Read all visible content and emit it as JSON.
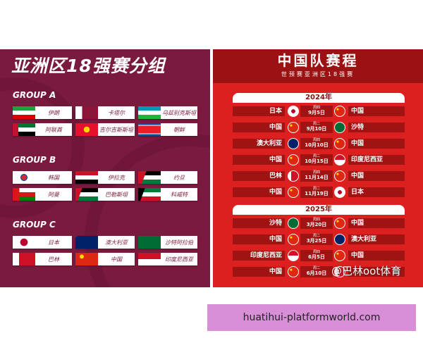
{
  "left": {
    "title": "亚洲区18强赛分组",
    "groups": [
      {
        "label": "GROUP A",
        "teams": [
          {
            "name": "伊朗",
            "flag": "ir"
          },
          {
            "name": "卡塔尔",
            "flag": "qa"
          },
          {
            "name": "乌兹别克斯坦",
            "flag": "uz"
          },
          {
            "name": "阿联酋",
            "flag": "ae"
          },
          {
            "name": "吉尔吉斯斯坦",
            "flag": "kg"
          },
          {
            "name": "朝鲜",
            "flag": "kp"
          }
        ]
      },
      {
        "label": "GROUP B",
        "teams": [
          {
            "name": "韩国",
            "flag": "kr"
          },
          {
            "name": "伊拉克",
            "flag": "iq"
          },
          {
            "name": "约旦",
            "flag": "jo"
          },
          {
            "name": "阿曼",
            "flag": "om"
          },
          {
            "name": "巴勒斯坦",
            "flag": "ps"
          },
          {
            "name": "科威特",
            "flag": "kw"
          }
        ]
      },
      {
        "label": "GROUP C",
        "teams": [
          {
            "name": "日本",
            "flag": "jp"
          },
          {
            "name": "澳大利亚",
            "flag": "au"
          },
          {
            "name": "沙特阿拉伯",
            "flag": "sa"
          },
          {
            "name": "巴林",
            "flag": "bh"
          },
          {
            "name": "中国",
            "flag": "cn"
          },
          {
            "name": "印度尼西亚",
            "flag": "id"
          }
        ]
      }
    ]
  },
  "right": {
    "title": "中国队赛程",
    "subtitle": "世预赛亚洲区18强赛",
    "years": [
      {
        "label": "2024年",
        "matches": [
          {
            "home": "日本",
            "hf": "jp",
            "weekday": "周四",
            "date": "9月5日",
            "away": "中国",
            "af": "cn"
          },
          {
            "home": "中国",
            "hf": "cn",
            "weekday": "周二",
            "date": "9月10日",
            "away": "沙特",
            "af": "sa"
          },
          {
            "home": "澳大利亚",
            "hf": "au",
            "weekday": "周四",
            "date": "10月10日",
            "away": "中国",
            "af": "cn"
          },
          {
            "home": "中国",
            "hf": "cn",
            "weekday": "周二",
            "date": "10月15日",
            "away": "印度尼西亚",
            "af": "id"
          },
          {
            "home": "巴林",
            "hf": "bh",
            "weekday": "周四",
            "date": "11月14日",
            "away": "中国",
            "af": "cn"
          },
          {
            "home": "中国",
            "hf": "cn",
            "weekday": "周二",
            "date": "11月19日",
            "away": "日本",
            "af": "jp"
          }
        ]
      },
      {
        "label": "2025年",
        "matches": [
          {
            "home": "沙特",
            "hf": "sa",
            "weekday": "周四",
            "date": "3月20日",
            "away": "中国",
            "af": "cn"
          },
          {
            "home": "中国",
            "hf": "cn",
            "weekday": "周二",
            "date": "3月25日",
            "away": "澳大利亚",
            "af": "au"
          },
          {
            "home": "印度尼西亚",
            "hf": "id",
            "weekday": "周四",
            "date": "6月5日",
            "away": "中国",
            "af": "cn"
          },
          {
            "home": "中国",
            "hf": "cn",
            "weekday": "周二",
            "date": "6月10日",
            "away": "",
            "af": "bh"
          }
        ]
      }
    ]
  },
  "watermark": "@巴林oot体育",
  "link": "huatihui-platformworld.com",
  "colors": {
    "left_bg": "#7a1a3e",
    "right_bg": "#dc1f1f",
    "link_bg": "#d98fd8"
  }
}
